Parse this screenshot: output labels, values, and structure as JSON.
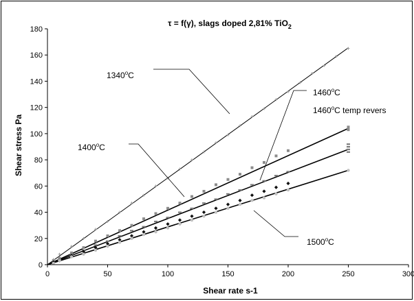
{
  "chart_data": {
    "type": "scatter",
    "title": "τ = f(γ), slags doped 2,81% TiO",
    "title_subscript": "2",
    "xlabel": "Shear rate s-1",
    "ylabel": "Shear stress Pa",
    "xlim": [
      0,
      300
    ],
    "ylim": [
      0,
      180
    ],
    "xticks": [
      0,
      50,
      100,
      150,
      200,
      250,
      300
    ],
    "yticks": [
      0,
      20,
      40,
      60,
      80,
      100,
      120,
      140,
      160,
      180
    ],
    "grid": false,
    "legend": "none",
    "fit_lines": [
      {
        "x": [
          0,
          250
        ],
        "y": [
          0,
          165.5
        ]
      },
      {
        "x": [
          0,
          250
        ],
        "y": [
          0,
          104
        ]
      },
      {
        "x": [
          0,
          250
        ],
        "y": [
          0,
          88
        ]
      },
      {
        "x": [
          0,
          250
        ],
        "y": [
          0,
          72
        ]
      }
    ],
    "series": [
      {
        "marker": "plus",
        "color": "#9a9a9a",
        "x": [
          5,
          10,
          20,
          30,
          40,
          50,
          60,
          70,
          80,
          90,
          100,
          110,
          120,
          130,
          140,
          150,
          160,
          170,
          180,
          190,
          200,
          210,
          220,
          230,
          240,
          250
        ],
        "y": [
          4,
          8,
          14,
          20,
          27,
          33,
          40,
          47,
          53,
          60,
          66,
          73,
          80,
          86,
          93,
          99,
          106,
          113,
          119,
          126,
          132,
          139,
          146,
          152,
          159,
          165
        ]
      },
      {
        "marker": "square",
        "color": "#8c8c8c",
        "x": [
          5,
          10,
          20,
          30,
          40,
          50,
          60,
          70,
          80,
          90,
          100,
          110,
          120,
          130,
          140,
          150,
          160,
          170,
          180,
          190,
          200,
          250,
          250,
          250
        ],
        "y": [
          3,
          5,
          9,
          13,
          18,
          22,
          26,
          30,
          35,
          39,
          43,
          47,
          52,
          56,
          61,
          65,
          69,
          74,
          78,
          83,
          87,
          103,
          104,
          105
        ]
      },
      {
        "marker": "dash",
        "color": "#7a7a7a",
        "x": [
          5,
          10,
          20,
          30,
          40,
          50,
          60,
          70,
          80,
          90,
          100,
          110,
          120,
          130,
          140,
          150,
          160,
          170,
          180,
          190,
          200,
          250,
          250,
          250,
          250
        ],
        "y": [
          2,
          4,
          8,
          11,
          15,
          18,
          22,
          26,
          29,
          33,
          36,
          40,
          43,
          47,
          50,
          54,
          57,
          61,
          64,
          68,
          71,
          86,
          88,
          90,
          92
        ]
      },
      {
        "marker": "diamond",
        "color": "#111111",
        "x": [
          5,
          10,
          20,
          30,
          40,
          50,
          60,
          70,
          80,
          90,
          100,
          110,
          120,
          130,
          140,
          150,
          160,
          170,
          180,
          190,
          200
        ],
        "y": [
          2,
          3,
          7,
          10,
          13,
          16,
          19,
          22,
          25,
          28,
          31,
          34,
          37,
          40,
          43,
          46,
          49,
          53,
          56,
          59,
          62
        ]
      },
      {
        "marker": "circle",
        "color": "#c0c0c0",
        "x": [
          5,
          10,
          20,
          30,
          40,
          50,
          60,
          70,
          80,
          90,
          100,
          110,
          120,
          130,
          140,
          150,
          160,
          170,
          180,
          190,
          200,
          250
        ],
        "y": [
          1,
          3,
          6,
          8,
          11,
          14,
          17,
          20,
          23,
          25,
          28,
          31,
          34,
          37,
          40,
          43,
          46,
          49,
          51,
          54,
          57,
          72
        ]
      }
    ],
    "annotations": [
      {
        "label": "1340",
        "unit": "C",
        "deg": "o"
      },
      {
        "label": "1400",
        "unit": "C",
        "deg": "o"
      },
      {
        "label": "1460",
        "unit": "C",
        "deg": "o"
      },
      {
        "label": "1460",
        "unit": "C temp revers",
        "deg": "o"
      },
      {
        "label": "1500",
        "unit": "C",
        "deg": "o"
      }
    ]
  }
}
